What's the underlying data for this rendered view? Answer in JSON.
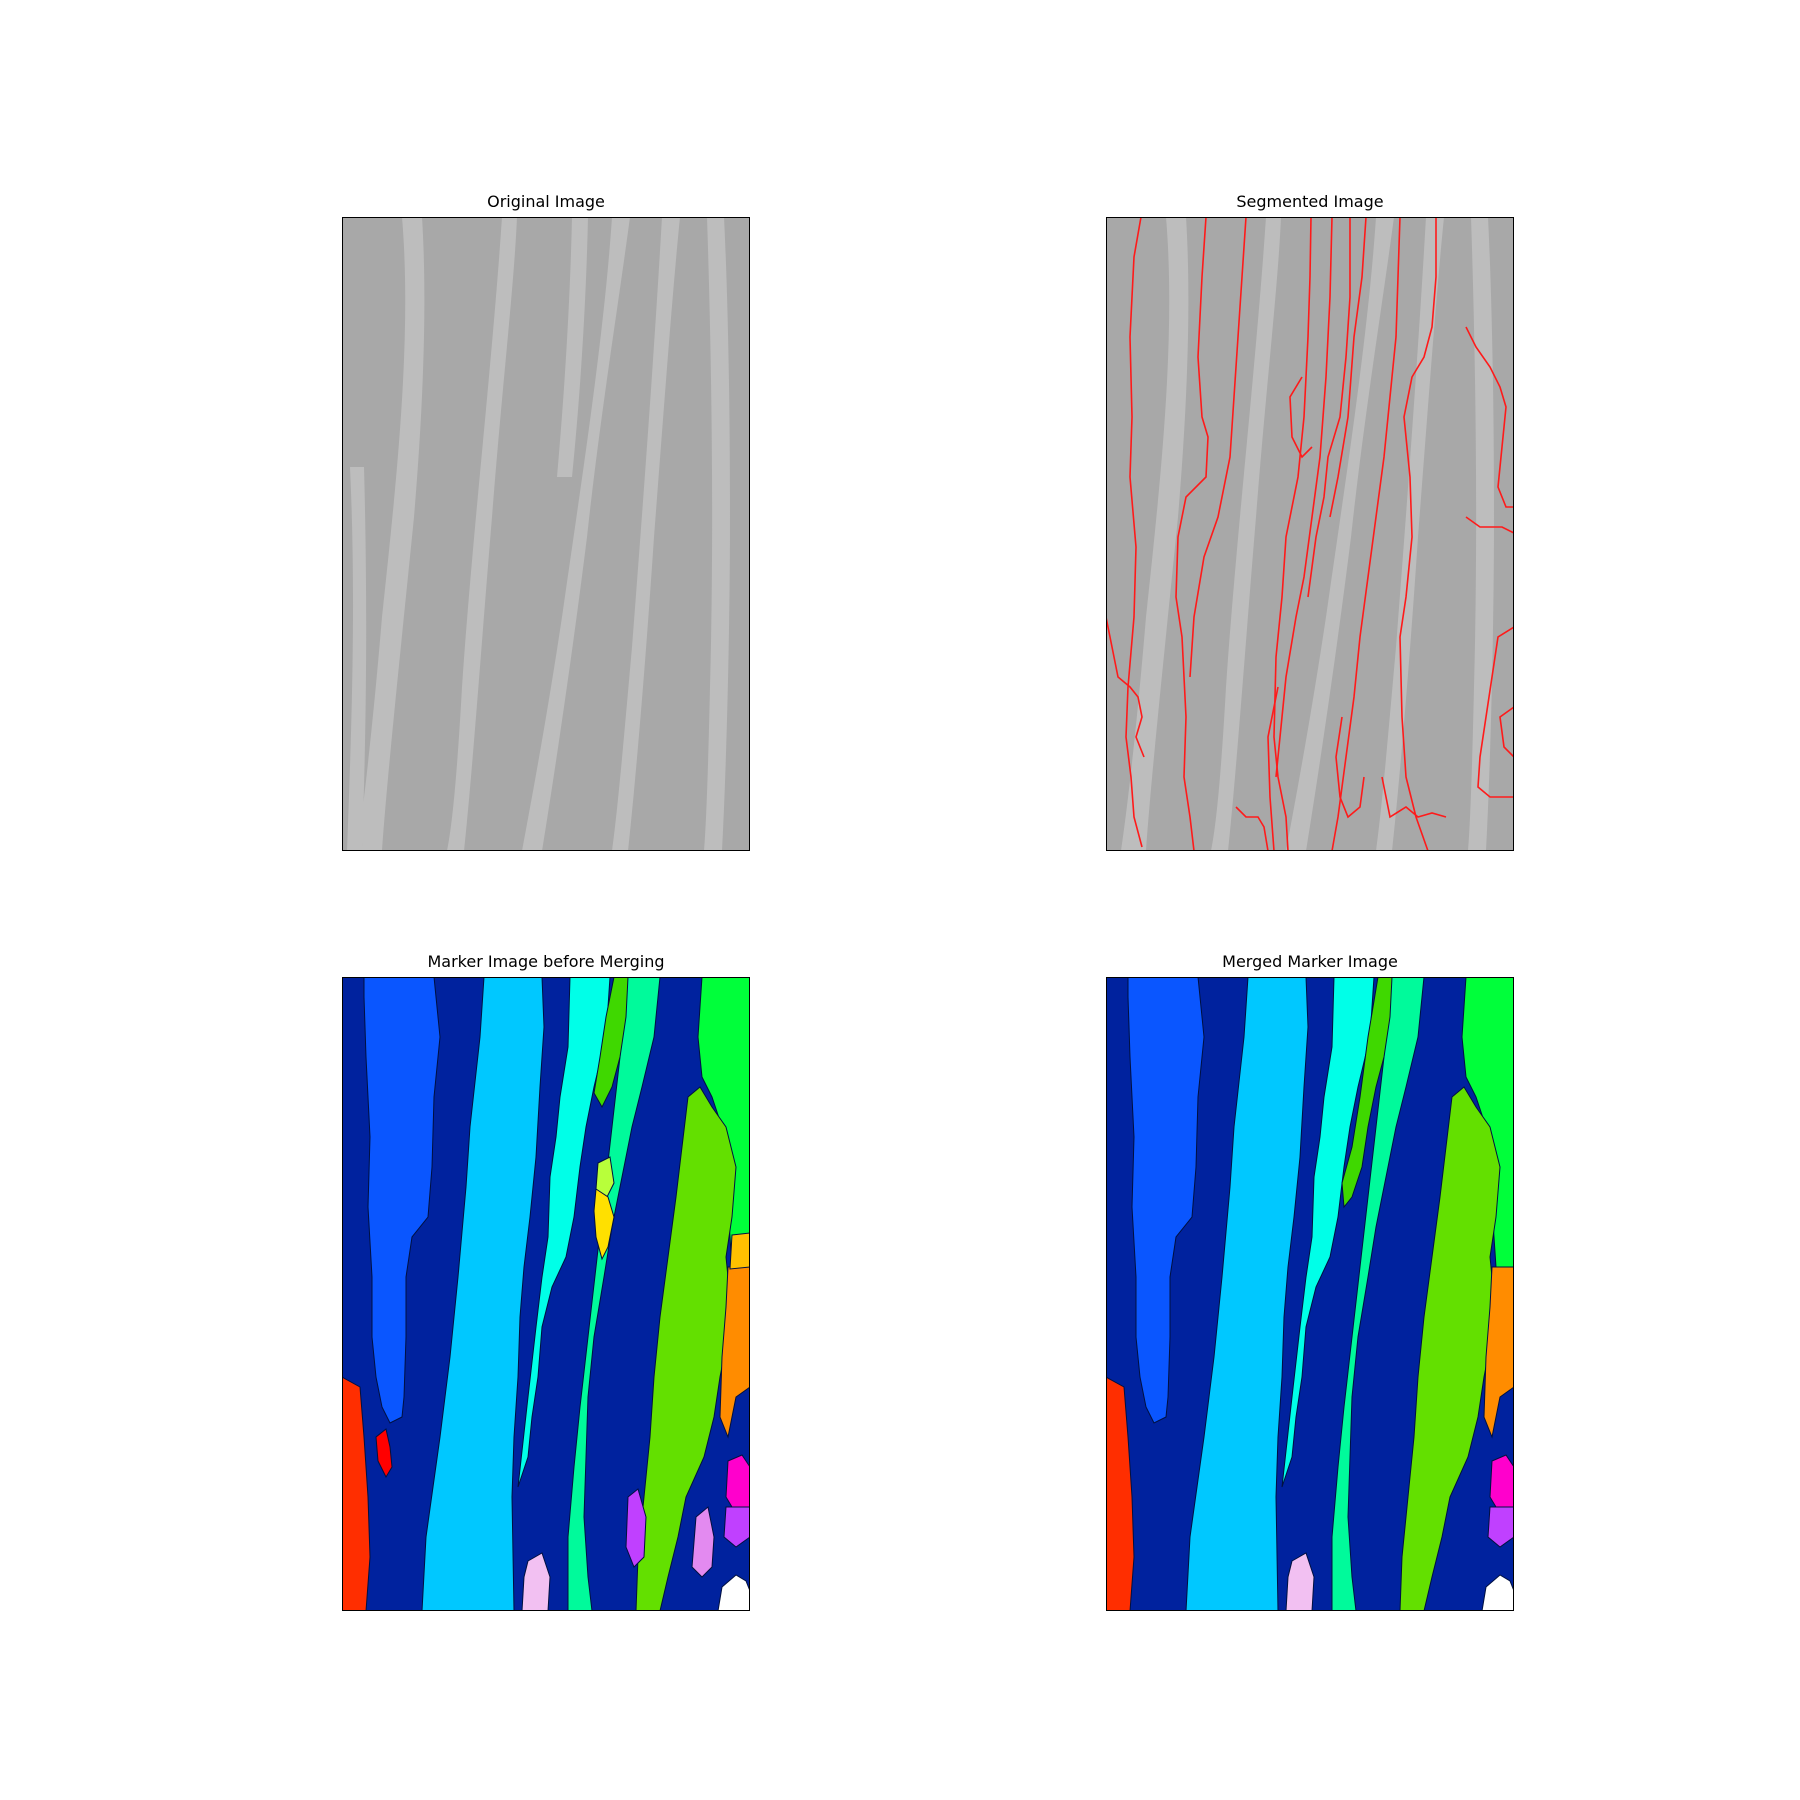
{
  "panels": [
    {
      "title": "Original Image",
      "kind": "grayscale-photo"
    },
    {
      "title": "Segmented Image",
      "kind": "grayscale-photo-with-boundaries",
      "boundary_color": "#ff1a1a"
    },
    {
      "title": "Marker Image before Merging",
      "kind": "label-map"
    },
    {
      "title": "Merged Marker Image",
      "kind": "label-map"
    }
  ],
  "colors": {
    "gray_base": "#a7a7a7",
    "gray_light": "#c3c3c3",
    "navy": "#00229e",
    "blue": "#0a56ff",
    "sky": "#00c8ff",
    "cyan": "#00ffe8",
    "teal_green": "#00fa9b",
    "lime": "#63e000",
    "green": "#00ff3a",
    "orange": "#ff8c00",
    "amber": "#ffc000",
    "yellow": "#ffe000",
    "red_orange": "#ff2e00",
    "red": "#ff0000",
    "purple": "#c040ff",
    "magenta": "#ff00cc",
    "violet_light": "#e38af0",
    "pink_light": "#f2c0f2",
    "white": "#ffffff",
    "yellow_green": "#b8ff3a"
  }
}
